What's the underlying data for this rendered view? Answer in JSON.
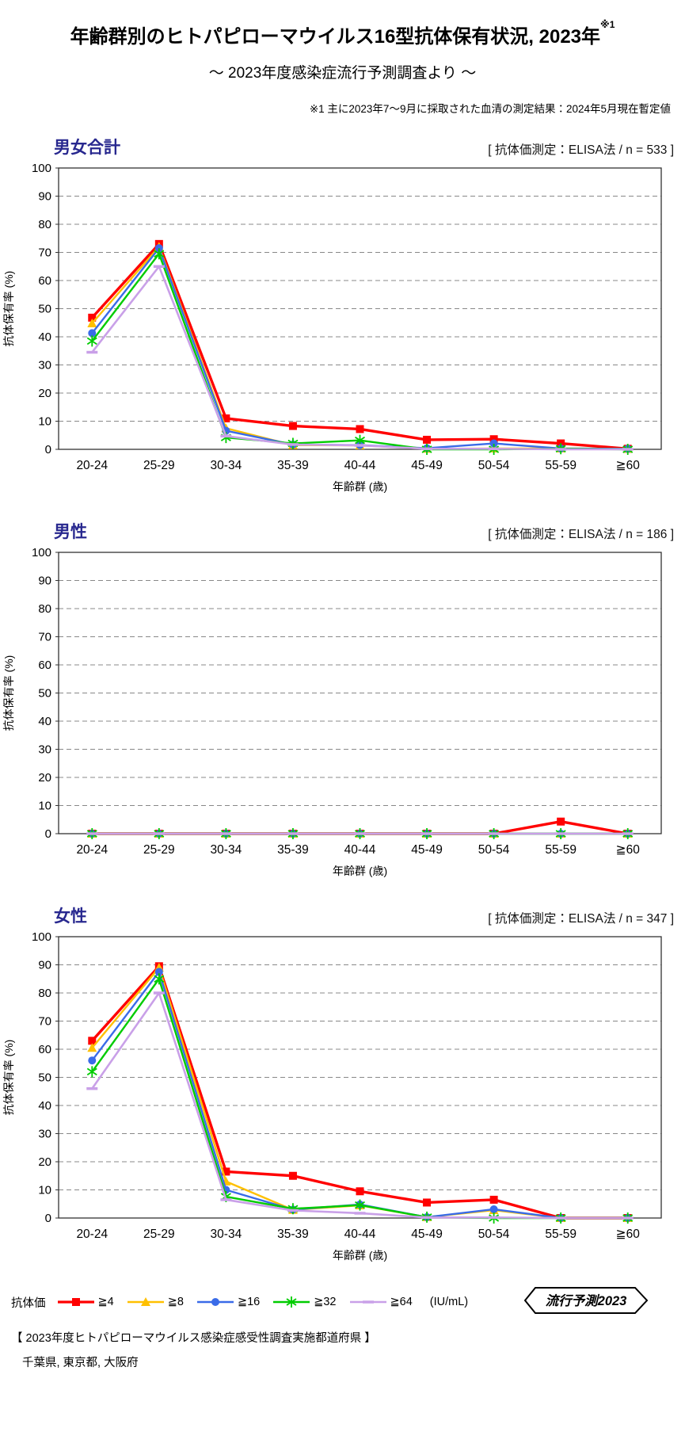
{
  "header": {
    "title": "年齢群別のヒトパピローマウイルス16型抗体保有状況, 2023年",
    "title_superscript": "※1",
    "subtitle": "～ 2023年度感染症流行予測調査より ～",
    "note": "※1  主に2023年7～9月に採取された血清の測定結果：2024年5月現在暫定値"
  },
  "axis": {
    "ylabel": "抗体保有率 (%)",
    "xlabel": "年齢群 (歳)",
    "ymin": 0,
    "ymax": 100,
    "ystep": 10
  },
  "legend": {
    "label": "抗体価",
    "unit": "(IU/mL)",
    "items": [
      {
        "label": "≧4",
        "color": "#FF0000",
        "marker": "square"
      },
      {
        "label": "≧8",
        "color": "#FFC000",
        "marker": "triangle"
      },
      {
        "label": "≧16",
        "color": "#3A6BE8",
        "marker": "circle"
      },
      {
        "label": "≧32",
        "color": "#00CC00",
        "marker": "star"
      },
      {
        "label": "≧64",
        "color": "#C9A0E8",
        "marker": "dash"
      }
    ]
  },
  "badge": "流行予測2023",
  "footer": {
    "line1": "【 2023年度ヒトパピローマウイルス感染症感受性調査実施都道府県 】",
    "line2": "千葉県,  東京都,  大阪府"
  },
  "chart_data": [
    {
      "type": "line",
      "title": "男女合計",
      "condition": "[ 抗体価測定：ELISA法  / n = 533 ]",
      "categories": [
        "20-24",
        "25-29",
        "30-34",
        "35-39",
        "40-44",
        "45-49",
        "50-54",
        "55-59",
        "≧60"
      ],
      "xlabel": "年齢群 (歳)",
      "ylabel": "抗体保有率 (%)",
      "ylim": [
        0,
        100
      ],
      "grid": "dashed-horizontal",
      "series": [
        {
          "name": "≧4",
          "color": "#FF0000",
          "marker": "square",
          "width": 3.4,
          "values": [
            46.8,
            73.0,
            11.0,
            8.3,
            7.2,
            3.4,
            3.6,
            2.1,
            0.2
          ]
        },
        {
          "name": "≧8",
          "color": "#FFC000",
          "marker": "triangle",
          "width": 2.4,
          "values": [
            44.8,
            72.0,
            7.5,
            1.5,
            1.4,
            0.2,
            0.3,
            0.3,
            0.2
          ]
        },
        {
          "name": "≧16",
          "color": "#3A6BE8",
          "marker": "circle",
          "width": 2.4,
          "values": [
            41.3,
            71.5,
            6.6,
            1.7,
            1.5,
            0.4,
            2.1,
            0.3,
            0.2
          ]
        },
        {
          "name": "≧32",
          "color": "#00CC00",
          "marker": "star",
          "width": 2.4,
          "values": [
            38.5,
            69.5,
            4.2,
            2.1,
            3.2,
            0.0,
            0.0,
            0.2,
            0.0
          ]
        },
        {
          "name": "≧64",
          "color": "#C9A0E8",
          "marker": "dash",
          "width": 2.6,
          "values": [
            34.5,
            65.0,
            4.7,
            1.7,
            1.4,
            0.2,
            0.2,
            0.0,
            0.0
          ]
        }
      ]
    },
    {
      "type": "line",
      "title": "男性",
      "condition": "[ 抗体価測定：ELISA法  / n = 186 ]",
      "categories": [
        "20-24",
        "25-29",
        "30-34",
        "35-39",
        "40-44",
        "45-49",
        "50-54",
        "55-59",
        "≧60"
      ],
      "xlabel": "年齢群 (歳)",
      "ylabel": "抗体保有率 (%)",
      "ylim": [
        0,
        100
      ],
      "grid": "dashed-horizontal",
      "series": [
        {
          "name": "≧4",
          "color": "#FF0000",
          "marker": "square",
          "width": 3.4,
          "values": [
            0,
            0,
            0,
            0,
            0,
            0,
            0,
            4.3,
            0
          ]
        },
        {
          "name": "≧8",
          "color": "#FFC000",
          "marker": "triangle",
          "width": 2.4,
          "values": [
            0,
            0,
            0,
            0,
            0,
            0,
            0,
            0,
            0
          ]
        },
        {
          "name": "≧16",
          "color": "#3A6BE8",
          "marker": "circle",
          "width": 2.4,
          "values": [
            0,
            0,
            0,
            0,
            0,
            0,
            0,
            0,
            0
          ]
        },
        {
          "name": "≧32",
          "color": "#00CC00",
          "marker": "star",
          "width": 2.4,
          "values": [
            0,
            0,
            0,
            0,
            0,
            0,
            0,
            0,
            0
          ]
        },
        {
          "name": "≧64",
          "color": "#C9A0E8",
          "marker": "dash",
          "width": 2.6,
          "values": [
            0,
            0,
            0,
            0,
            0,
            0,
            0,
            0,
            0
          ]
        }
      ]
    },
    {
      "type": "line",
      "title": "女性",
      "condition": "[ 抗体価測定：ELISA法  / n = 347 ]",
      "categories": [
        "20-24",
        "25-29",
        "30-34",
        "35-39",
        "40-44",
        "45-49",
        "50-54",
        "55-59",
        "≧60"
      ],
      "xlabel": "年齢群 (歳)",
      "ylabel": "抗体保有率 (%)",
      "ylim": [
        0,
        100
      ],
      "grid": "dashed-horizontal",
      "series": [
        {
          "name": "≧4",
          "color": "#FF0000",
          "marker": "square",
          "width": 3.4,
          "values": [
            63.0,
            89.5,
            16.5,
            15.0,
            9.5,
            5.5,
            6.5,
            0.0,
            0.0
          ]
        },
        {
          "name": "≧8",
          "color": "#FFC000",
          "marker": "triangle",
          "width": 2.4,
          "values": [
            60.5,
            89.0,
            13.0,
            2.9,
            4.5,
            0.3,
            2.8,
            0.0,
            0.0
          ]
        },
        {
          "name": "≧16",
          "color": "#3A6BE8",
          "marker": "circle",
          "width": 2.4,
          "values": [
            56.0,
            87.5,
            10.0,
            3.0,
            4.8,
            0.3,
            3.1,
            0.0,
            0.0
          ]
        },
        {
          "name": "≧32",
          "color": "#00CC00",
          "marker": "star",
          "width": 2.4,
          "values": [
            52.0,
            85.0,
            7.6,
            3.3,
            4.6,
            0.3,
            0.0,
            0.0,
            0.0
          ]
        },
        {
          "name": "≧64",
          "color": "#C9A0E8",
          "marker": "dash",
          "width": 2.6,
          "values": [
            46.0,
            80.0,
            6.5,
            2.7,
            1.7,
            0.2,
            0.2,
            0.0,
            0.0
          ]
        }
      ]
    }
  ]
}
